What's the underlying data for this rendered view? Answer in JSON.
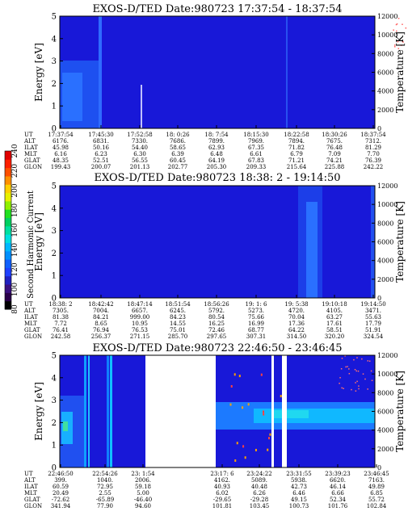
{
  "colorbar": {
    "label": "Second Harmonic Current",
    "ticks": [
      "240",
      "220",
      "200",
      "180",
      "160",
      "140",
      "120",
      "100",
      "80"
    ],
    "colors": [
      "#000000",
      "#2a004a",
      "#3a1080",
      "#2020c0",
      "#1e40ff",
      "#1060ff",
      "#0090ff",
      "#00b8ff",
      "#00e0e0",
      "#00e0a0",
      "#00d060",
      "#20e020",
      "#90f000",
      "#e8f000",
      "#ffd000",
      "#ff9000",
      "#ff5000",
      "#ff2000",
      "#e00000"
    ]
  },
  "chart_data": [
    {
      "type": "heatmap",
      "title": "EXOS-D/TED   Date:980723  17:37:54 - 18:37:54",
      "ylabel": "Energy [eV]",
      "y2label": "Temperature [K]",
      "ylim": [
        0,
        5
      ],
      "y2lim": [
        0,
        12000
      ],
      "yticks": [
        "0",
        "1",
        "2",
        "3",
        "4",
        "5"
      ],
      "y2ticks": [
        "0",
        "2000",
        "4000",
        "6000",
        "8000",
        "10000",
        "12000"
      ],
      "rows": [
        {
          "label": "UT",
          "values": [
            "17:37:54",
            "17:45:30",
            "17:52:58",
            "18: 0:26",
            "18: 7:54",
            "18:15:30",
            "18:22:58",
            "18:30:26",
            "18:37:54"
          ]
        },
        {
          "label": "ALT",
          "values": [
            "6176.",
            "6831.",
            "7330.",
            "7686.",
            "7899.",
            "7969.",
            "7894.",
            "7675.",
            "7312."
          ]
        },
        {
          "label": "ILAT",
          "values": [
            "45.98",
            "50.16",
            "54.40",
            "58.65",
            "62.93",
            "67.35",
            "71.82",
            "76.48",
            "81.29"
          ]
        },
        {
          "label": "MLT",
          "values": [
            "6.16",
            "6.23",
            "6.30",
            "6.39",
            "6.48",
            "6.61",
            "6.79",
            "7.09",
            "7.70"
          ]
        },
        {
          "label": "GLAT",
          "values": [
            "48.35",
            "52.51",
            "56.55",
            "60.45",
            "64.19",
            "67.83",
            "71.21",
            "74.21",
            "76.39"
          ]
        },
        {
          "label": "GLON",
          "values": [
            "199.43",
            "200.07",
            "201.13",
            "202.77",
            "205.30",
            "209.33",
            "215.64",
            "225.88",
            "242.22"
          ]
        }
      ]
    },
    {
      "type": "heatmap",
      "title": "EXOS-D/TED   Date:980723  18:38: 2 - 19:14:50",
      "ylabel": "Energy [eV]",
      "y2label": "Temperature [K]",
      "ylim": [
        0,
        5
      ],
      "y2lim": [
        0,
        12000
      ],
      "yticks": [
        "0",
        "1",
        "2",
        "3",
        "4",
        "5"
      ],
      "y2ticks": [
        "0",
        "2000",
        "4000",
        "6000",
        "8000",
        "10000",
        "12000"
      ],
      "rows": [
        {
          "label": "UT",
          "values": [
            "18:38: 2",
            "18:42:42",
            "18:47:14",
            "18:51:54",
            "18:56:26",
            "19: 1: 6",
            "19: 5:38",
            "19:10:18",
            "19:14:50"
          ]
        },
        {
          "label": "ALT",
          "values": [
            "7305.",
            "7004.",
            "6657.",
            "6245.",
            "5792.",
            "5273.",
            "4720.",
            "4105.",
            "3471."
          ]
        },
        {
          "label": "ILAT",
          "values": [
            "81.38",
            "84.21",
            "999.00",
            "84.23",
            "80.54",
            "75.66",
            "70.04",
            "63.27",
            "55.63"
          ]
        },
        {
          "label": "MLT",
          "values": [
            "7.72",
            "8.65",
            "10.95",
            "14.55",
            "16.25",
            "16.99",
            "17.36",
            "17.61",
            "17.79"
          ]
        },
        {
          "label": "GLAT",
          "values": [
            "76.41",
            "76.94",
            "76.53",
            "75.01",
            "72.46",
            "68.77",
            "64.22",
            "58.51",
            "51.91"
          ]
        },
        {
          "label": "GLON",
          "values": [
            "242.58",
            "256.37",
            "271.15",
            "285.70",
            "297.65",
            "307.31",
            "314.50",
            "320.20",
            "324.54"
          ]
        }
      ]
    },
    {
      "type": "heatmap",
      "title": "EXOS-D/TED   Date:980723  22:46:50 - 23:46:45",
      "ylabel": "Energy [eV]",
      "y2label": "Temperature [K]",
      "ylim": [
        0,
        5
      ],
      "y2lim": [
        0,
        12000
      ],
      "yticks": [
        "0",
        "1",
        "2",
        "3",
        "4",
        "5"
      ],
      "y2ticks": [
        "0",
        "2000",
        "4000",
        "6000",
        "8000",
        "10000",
        "12000"
      ],
      "rows": [
        {
          "label": "UT",
          "values": [
            "22:46:50",
            "22:54:26",
            "23: 1:54",
            "",
            "23:17: 6",
            "23:24:22",
            "23:31:55",
            "23:39:23",
            "23:46:45"
          ]
        },
        {
          "label": "ALT",
          "values": [
            "399.",
            "1040.",
            "2006.",
            "",
            "4162.",
            "5089.",
            "5938.",
            "6620.",
            "7163."
          ]
        },
        {
          "label": "ILAT",
          "values": [
            "60.59",
            "72.95",
            "59.18",
            "",
            "40.93",
            "40.48",
            "42.73",
            "46.14",
            "49.89"
          ]
        },
        {
          "label": "MLT",
          "values": [
            "20.49",
            "2.55",
            "5.00",
            "",
            "6.02",
            "6.26",
            "6.46",
            "6.66",
            "6.85"
          ]
        },
        {
          "label": "GLAT",
          "values": [
            "-72.62",
            "-65.89",
            "-46.40",
            "",
            "-29.65",
            "-29.28",
            "49.15",
            "52.34",
            "55.72"
          ]
        },
        {
          "label": "GLON",
          "values": [
            "341.94",
            "77.90",
            "94.60",
            "",
            "101.81",
            "103.45",
            "100.73",
            "101.76",
            "102.84"
          ]
        }
      ]
    }
  ]
}
